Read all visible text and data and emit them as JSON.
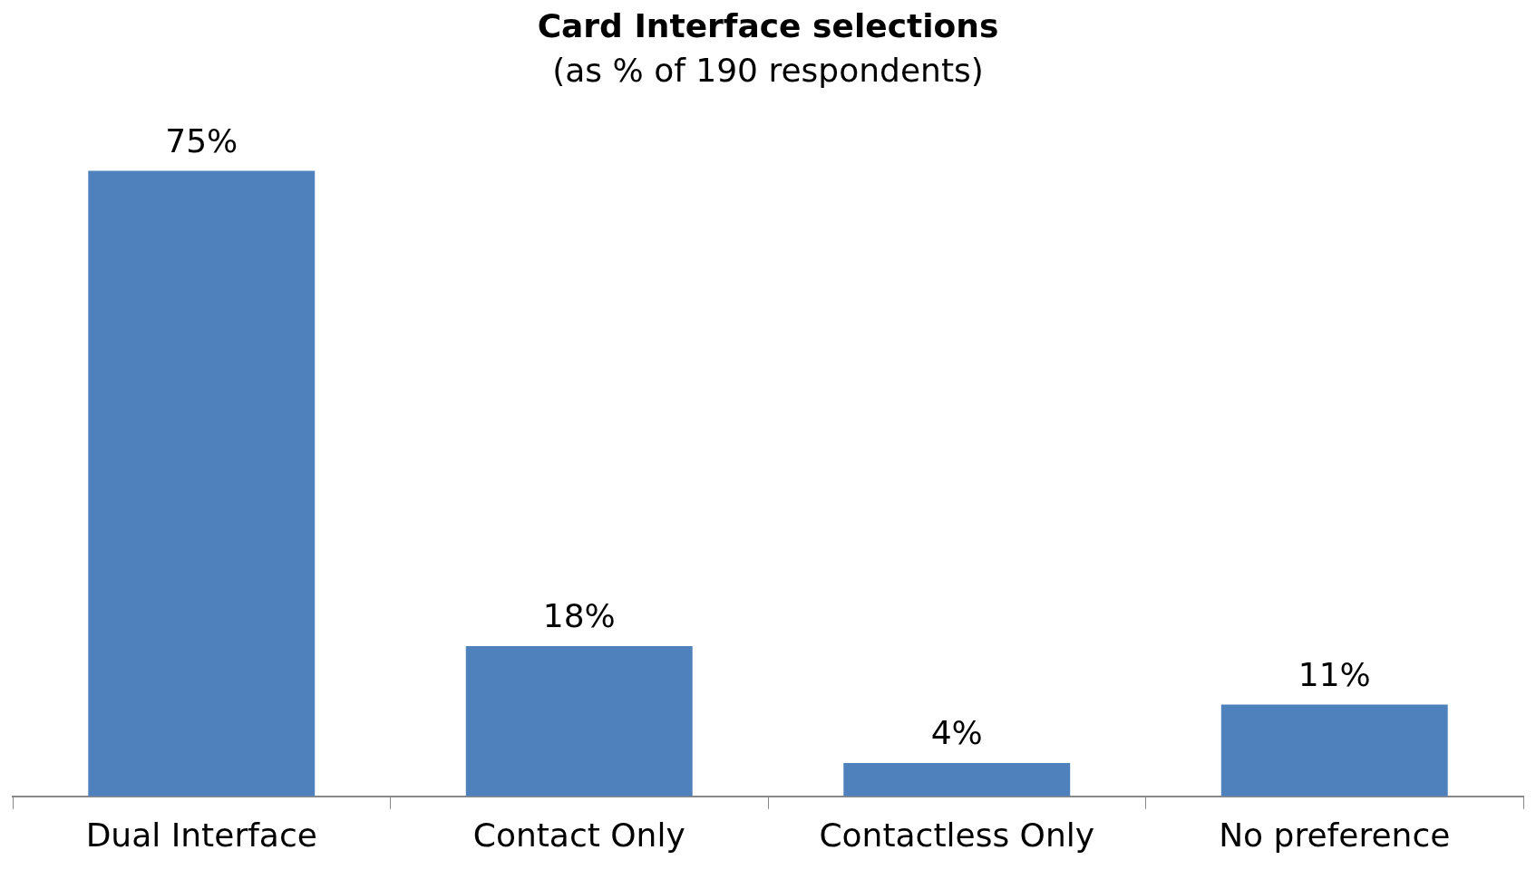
{
  "chart_data": {
    "type": "bar",
    "title": "Card Interface selections",
    "subtitle": "(as % of 190 respondents)",
    "categories": [
      "Dual Interface",
      "Contact Only",
      "Contactless Only",
      "No preference"
    ],
    "values": [
      75,
      18,
      4,
      11
    ],
    "color": "#4f81bd",
    "data_labels": true,
    "value_labels": [
      "75%",
      "18%",
      "4%",
      "11%"
    ]
  }
}
